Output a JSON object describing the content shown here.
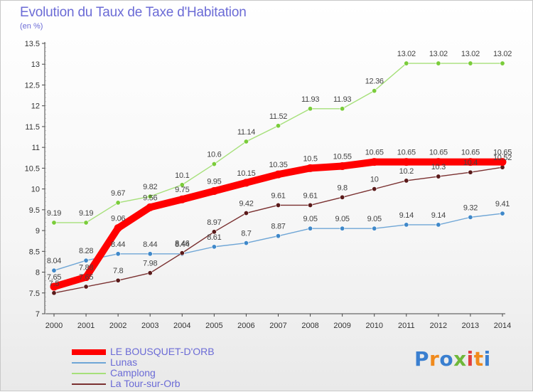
{
  "title": "Evolution du Taux de Taxe d'Habitation",
  "unit": "(en %)",
  "brand": {
    "letters": [
      {
        "ch": "P",
        "color": "#3a7fd0"
      },
      {
        "ch": "r",
        "color": "#f08a1c"
      },
      {
        "ch": "o",
        "color": "#3a7fd0"
      },
      {
        "ch": "x",
        "color": "#6fb83a"
      },
      {
        "ch": "i",
        "color": "#e04040"
      },
      {
        "ch": "t",
        "color": "#f08a1c"
      },
      {
        "ch": "i",
        "color": "#3a7fd0"
      }
    ]
  },
  "chart_data": {
    "type": "line",
    "title": "Evolution du Taux de Taxe d'Habitation",
    "ylabel": "(en %)",
    "xlabel": "",
    "x": [
      "2000",
      "2001",
      "2002",
      "2003",
      "2004",
      "2005",
      "2006",
      "2007",
      "2008",
      "2009",
      "2010",
      "2011",
      "2012",
      "2013",
      "2014"
    ],
    "ylim": [
      7,
      13.5
    ],
    "yticks": [
      "7",
      "7.5",
      "8",
      "8.5",
      "9",
      "9.5",
      "10",
      "10.5",
      "11",
      "11.5",
      "12",
      "12.5",
      "13",
      "13.5"
    ],
    "grid": false,
    "legend_position": "bottom-left",
    "series": [
      {
        "name": "LE BOUSQUET-D'ORB",
        "color": "#ff0000",
        "marker": "#ff0000",
        "values": [
          7.65,
          7.88,
          9.06,
          9.56,
          9.75,
          9.95,
          10.15,
          10.35,
          10.5,
          10.55,
          10.65,
          10.65,
          10.65,
          10.65,
          10.65
        ],
        "labels": [
          "7.65",
          "7.88",
          "9.06",
          "9.56",
          "9.75",
          "9.95",
          "10.15",
          "10.35",
          "10.5",
          "10.55",
          "10.65",
          "10.65",
          "10.65",
          "10.65",
          "10.65"
        ]
      },
      {
        "name": "Lunas",
        "color": "#6fa6d6",
        "marker": "#3f88c9",
        "values": [
          8.04,
          8.28,
          8.44,
          8.44,
          8.44,
          8.61,
          8.7,
          8.87,
          9.05,
          9.05,
          9.05,
          9.14,
          9.14,
          9.32,
          9.41
        ],
        "labels": [
          "8.04",
          "8.28",
          "8.44",
          "8.44",
          "8.44",
          "8.61",
          "8.7",
          "8.87",
          "9.05",
          "9.05",
          "9.05",
          "9.14",
          "9.14",
          "9.32",
          "9.41"
        ]
      },
      {
        "name": "Camplong",
        "color": "#a6e07a",
        "marker": "#7acc3a",
        "values": [
          9.19,
          9.19,
          9.67,
          9.82,
          10.1,
          10.6,
          11.14,
          11.52,
          11.93,
          11.93,
          12.36,
          13.02,
          13.02,
          13.02,
          13.02
        ],
        "labels": [
          "9.19",
          "9.19",
          "9.67",
          "9.82",
          "10.1",
          "10.6",
          "11.14",
          "11.52",
          "11.93",
          "11.93",
          "12.36",
          "13.02",
          "13.02",
          "13.02",
          "13.02"
        ]
      },
      {
        "name": "La Tour-sur-Orb",
        "color": "#7a3030",
        "marker": "#5a1a1a",
        "values": [
          7.5,
          7.65,
          7.8,
          7.98,
          8.46,
          8.97,
          9.42,
          9.61,
          9.61,
          9.8,
          10.0,
          10.2,
          10.3,
          10.4,
          10.52
        ],
        "labels": [
          "7.5",
          "7.65",
          "7.8",
          "7.98",
          "8.46",
          "8.97",
          "9.42",
          "9.61",
          "9.61",
          "9.8",
          "10",
          "10.2",
          "10.3",
          "10.4",
          "10.52"
        ]
      }
    ]
  }
}
